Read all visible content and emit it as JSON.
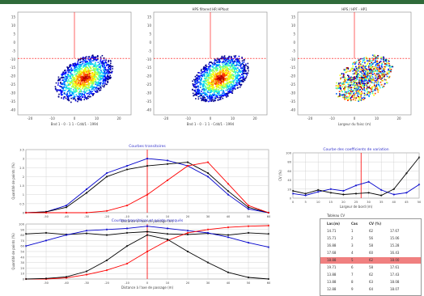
{
  "colors": {
    "frame": "#2f6b3a",
    "blue": "#0000cc",
    "red": "#ff0000",
    "black": "#000000",
    "title": "#3333cc",
    "grid": "#cccccc"
  },
  "scatter": [
    {
      "title": "",
      "xlabel": "Bnd 1 - 0 - 1 1 - Cdd/1 - 1994",
      "xticks": [
        "-20",
        "-10",
        "0",
        "10",
        "20"
      ],
      "yticks": [
        "15",
        "10",
        "5",
        "0",
        "-5",
        "-10",
        "-15",
        "-20",
        "-25",
        "-30",
        "-35",
        "-40"
      ]
    },
    {
      "title": "HPS filtered HR HPfoot",
      "xlabel": "Bnd 1 - 0 - 1 1 - Cdd/1 - 1994",
      "xticks": [
        "-20",
        "-10",
        "0",
        "10",
        "20"
      ],
      "yticks": [
        "15",
        "10",
        "5",
        "0",
        "-5",
        "-10",
        "-15",
        "-20",
        "-25",
        "-30",
        "-35",
        "-40"
      ]
    },
    {
      "title": "HPS / HPF - HP1",
      "xlabel": "Largeur du faisc (m)",
      "xticks": [
        "-20",
        "-10",
        "0",
        "10",
        "20"
      ],
      "yticks": [
        "15",
        "10",
        "5",
        "0",
        "-5",
        "-10",
        "-15",
        "-20",
        "-25",
        "-30",
        "-35",
        "-40"
      ]
    }
  ],
  "chart_data": [
    {
      "type": "line",
      "title": "Courbes transitoires",
      "xlabel": "Distance à l'axe de passage (m)",
      "ylabel": "Quantité de points (%)",
      "x": [
        -60,
        -50,
        -40,
        -30,
        -20,
        -10,
        0,
        10,
        20,
        30,
        40,
        50,
        60
      ],
      "xticks": [
        "-50",
        "-40",
        "-30",
        "-20",
        "-10",
        "0",
        "10",
        "20",
        "30",
        "40",
        "50",
        "60"
      ],
      "yticks": [
        "3.5",
        "3",
        "2.5",
        "2",
        "1.5",
        "1",
        "0.5",
        "0"
      ],
      "ylim": [
        0,
        3.5
      ],
      "series": [
        {
          "values": [
            0,
            0.05,
            0.4,
            1.3,
            2.2,
            2.6,
            3.0,
            2.9,
            2.6,
            2.0,
            1.0,
            0.2,
            0
          ],
          "color": "#0000cc"
        },
        {
          "values": [
            0,
            0.05,
            0.3,
            1.1,
            2.0,
            2.4,
            2.6,
            2.7,
            2.8,
            2.2,
            1.2,
            0.3,
            0
          ],
          "color": "#000000"
        },
        {
          "values": [
            0,
            0,
            0,
            0,
            0.1,
            0.4,
            1.0,
            1.8,
            2.6,
            2.8,
            1.6,
            0.4,
            0
          ],
          "color": "#ff0000"
        }
      ],
      "vline_x": 0
    },
    {
      "type": "line",
      "title": "Courbes transitoires et points masqués",
      "xlabel": "Distance à l'axe de passage (m)",
      "ylabel": "Quantité de points (%)",
      "x": [
        -60,
        -50,
        -40,
        -30,
        -20,
        -10,
        0,
        10,
        20,
        30,
        40,
        50,
        60
      ],
      "xticks": [
        "-50",
        "-40",
        "-30",
        "-20",
        "-10",
        "0",
        "10",
        "20",
        "30",
        "40",
        "50",
        "60"
      ],
      "yticks": [
        "100",
        "90",
        "80",
        "70",
        "60",
        "50",
        "40",
        "30",
        "20",
        "10",
        "0"
      ],
      "ylim": [
        0,
        100
      ],
      "series": [
        {
          "values": [
            82,
            84,
            81,
            83,
            80,
            84,
            86,
            82,
            81,
            83,
            80,
            84,
            82
          ],
          "color": "#000000"
        },
        {
          "values": [
            60,
            70,
            80,
            88,
            90,
            92,
            96,
            92,
            88,
            84,
            76,
            66,
            58
          ],
          "color": "#0000cc"
        },
        {
          "values": [
            0,
            0,
            2,
            8,
            16,
            28,
            50,
            70,
            84,
            90,
            94,
            96,
            97
          ],
          "color": "#ff0000"
        },
        {
          "values": [
            0,
            1,
            4,
            14,
            34,
            60,
            80,
            72,
            50,
            30,
            12,
            3,
            0
          ],
          "color": "#000000"
        }
      ],
      "vline_x": 0
    },
    {
      "type": "line",
      "title": "Courbe des coefficients de variation",
      "xlabel": "Largeur de bord (m)",
      "ylabel": "CV (%)",
      "x": [
        0,
        5,
        10,
        15,
        20,
        25,
        30,
        35,
        40,
        45,
        50
      ],
      "xticks": [
        "0",
        "5",
        "10",
        "15",
        "20",
        "25",
        "30",
        "35",
        "40",
        "45",
        "50"
      ],
      "yticks": [
        "100",
        "80",
        "60",
        "40",
        "20",
        "0"
      ],
      "ylim": [
        0,
        100
      ],
      "series": [
        {
          "values": [
            10,
            6,
            14,
            20,
            16,
            28,
            36,
            18,
            8,
            12,
            30
          ],
          "color": "#0000cc"
        },
        {
          "values": [
            16,
            10,
            18,
            12,
            8,
            10,
            12,
            6,
            20,
            55,
            90
          ],
          "color": "#000000"
        }
      ],
      "vline_x": 27
    }
  ],
  "table": {
    "title": "Tableau CV",
    "headers": [
      "Lar.(m)",
      "Cas",
      "CV (%)"
    ],
    "rows": [
      [
        "14.71",
        "1",
        "62",
        "17.67"
      ],
      [
        "15.71",
        "2",
        "56",
        "15.06"
      ],
      [
        "16.88",
        "3",
        "58",
        "15.28"
      ],
      [
        "17.68",
        "4",
        "60",
        "16.43"
      ],
      [
        "18.88",
        "5",
        "62",
        "18.00"
      ],
      [
        "19.71",
        "6",
        "58",
        "17.61"
      ],
      [
        "13.88",
        "7",
        "62",
        "17.43"
      ],
      [
        "13.88",
        "8",
        "63",
        "18.08"
      ],
      [
        "12.88",
        "9",
        "64",
        "18.07"
      ]
    ],
    "highlight_index": 4
  }
}
